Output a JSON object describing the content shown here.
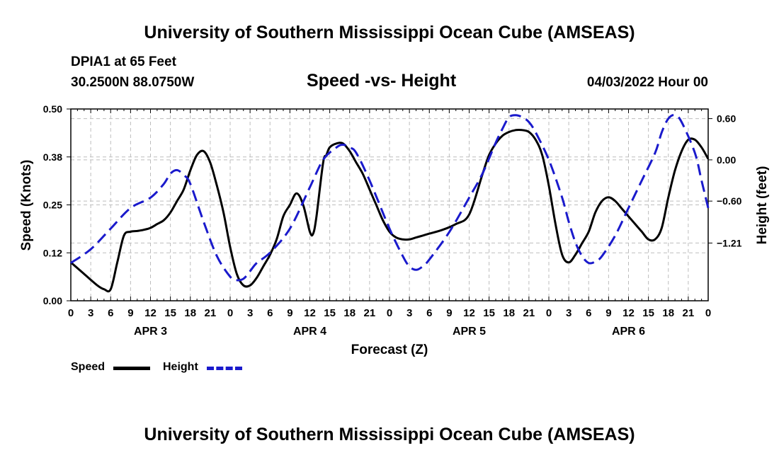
{
  "page": {
    "title": "University of Southern Mississippi Ocean Cube (AMSEAS)",
    "station": "DPIA1 at 65 Feet",
    "coords": "30.2500N  88.0750W",
    "subtitle": "Speed -vs- Height",
    "datetime": "04/03/2022 Hour 00",
    "footer_title": "University of Southern Mississippi Ocean Cube (AMSEAS)"
  },
  "colors": {
    "speed": "#000000",
    "height": "#1a1acc",
    "grid": "#bdbdbd"
  },
  "legend": {
    "speed_label": "Speed",
    "height_label": "Height"
  },
  "chart_data": {
    "type": "line",
    "title": "Speed -vs- Height",
    "xlabel": "Forecast (Z)",
    "ylabel": "Speed (Knots)",
    "y2label": "Height (feet)",
    "xlim": [
      0,
      96
    ],
    "ylim": [
      0,
      0.5
    ],
    "y2lim": [
      -2.05,
      0.74
    ],
    "yticks": [
      "0.00",
      "0.12",
      "0.25",
      "0.38",
      "0.50"
    ],
    "y2ticks": [
      {
        "value": 0.6,
        "label": "0.60"
      },
      {
        "value": 0.0,
        "label": "0.00"
      },
      {
        "value": -0.6,
        "label": "−0.60"
      },
      {
        "value": -1.21,
        "label": "−1.21"
      }
    ],
    "xticks": [
      "0",
      "3",
      "6",
      "9",
      "12",
      "15",
      "18",
      "21",
      "0",
      "3",
      "6",
      "9",
      "12",
      "15",
      "18",
      "21",
      "0",
      "3",
      "6",
      "9",
      "12",
      "15",
      "18",
      "21",
      "0",
      "3",
      "6",
      "9",
      "12",
      "15",
      "18",
      "21",
      "0"
    ],
    "day_labels": [
      {
        "label": "APR 3",
        "x": 12
      },
      {
        "label": "APR 4",
        "x": 36
      },
      {
        "label": "APR 5",
        "x": 60
      },
      {
        "label": "APR 6",
        "x": 84
      }
    ],
    "series": [
      {
        "name": "Speed",
        "axis": "left",
        "style": "solid",
        "x": [
          0,
          2,
          4,
          5,
          6,
          7,
          8,
          9,
          10,
          11,
          12,
          13,
          14,
          15,
          16,
          17,
          18,
          19,
          20,
          21,
          22,
          23,
          24,
          25,
          26,
          27,
          28,
          29,
          30,
          31,
          32,
          33,
          34,
          35,
          36,
          36.5,
          37,
          38,
          38.5,
          39,
          40,
          41,
          42,
          43,
          44,
          45,
          46,
          47,
          48,
          49,
          50,
          51,
          52,
          53,
          54,
          56,
          58,
          60,
          62,
          63,
          64,
          65,
          66,
          67,
          68,
          69,
          70,
          71,
          72,
          73,
          74,
          75,
          76,
          77,
          78,
          79,
          80,
          81,
          82,
          83,
          84,
          85,
          86,
          87,
          88,
          89,
          90,
          91,
          92,
          93,
          94,
          95,
          96
        ],
        "values": [
          0.1,
          0.07,
          0.04,
          0.03,
          0.03,
          0.1,
          0.17,
          0.18,
          0.182,
          0.185,
          0.19,
          0.2,
          0.21,
          0.23,
          0.26,
          0.29,
          0.34,
          0.38,
          0.39,
          0.36,
          0.3,
          0.23,
          0.14,
          0.07,
          0.04,
          0.04,
          0.06,
          0.09,
          0.12,
          0.16,
          0.22,
          0.25,
          0.28,
          0.25,
          0.18,
          0.175,
          0.22,
          0.36,
          0.38,
          0.4,
          0.41,
          0.41,
          0.39,
          0.36,
          0.33,
          0.29,
          0.25,
          0.21,
          0.18,
          0.165,
          0.16,
          0.16,
          0.165,
          0.17,
          0.175,
          0.185,
          0.2,
          0.225,
          0.33,
          0.38,
          0.41,
          0.43,
          0.44,
          0.445,
          0.445,
          0.44,
          0.42,
          0.38,
          0.3,
          0.2,
          0.12,
          0.1,
          0.12,
          0.15,
          0.18,
          0.23,
          0.26,
          0.27,
          0.26,
          0.24,
          0.22,
          0.2,
          0.18,
          0.16,
          0.16,
          0.19,
          0.27,
          0.34,
          0.39,
          0.42,
          0.42,
          0.4,
          0.37
        ]
      },
      {
        "name": "Height",
        "axis": "right",
        "style": "dashed",
        "x": [
          0,
          3,
          6,
          9,
          12,
          14,
          15,
          16,
          17,
          18,
          20,
          22,
          24,
          25,
          26,
          27,
          28,
          30,
          33,
          36,
          38,
          40,
          41,
          42,
          43,
          45,
          48,
          50,
          51,
          52,
          53,
          54,
          57,
          60,
          62,
          64,
          65,
          66,
          67,
          68,
          69,
          70,
          72,
          74,
          75,
          76,
          77,
          78,
          79,
          80,
          82,
          84,
          86,
          88,
          89,
          90,
          91,
          92,
          94,
          95,
          96
        ],
        "values": [
          -1.5,
          -1.3,
          -1.0,
          -0.7,
          -0.55,
          -0.35,
          -0.2,
          -0.15,
          -0.22,
          -0.35,
          -0.9,
          -1.4,
          -1.7,
          -1.75,
          -1.73,
          -1.62,
          -1.5,
          -1.35,
          -1.0,
          -0.4,
          0.0,
          0.18,
          0.22,
          0.18,
          0.1,
          -0.3,
          -1.0,
          -1.4,
          -1.55,
          -1.6,
          -1.55,
          -1.45,
          -1.05,
          -0.55,
          -0.2,
          0.25,
          0.45,
          0.62,
          0.65,
          0.62,
          0.55,
          0.4,
          0.0,
          -0.55,
          -0.9,
          -1.2,
          -1.4,
          -1.5,
          -1.48,
          -1.4,
          -1.1,
          -0.7,
          -0.3,
          0.1,
          0.4,
          0.6,
          0.65,
          0.55,
          0.1,
          -0.3,
          -0.7
        ]
      }
    ]
  }
}
